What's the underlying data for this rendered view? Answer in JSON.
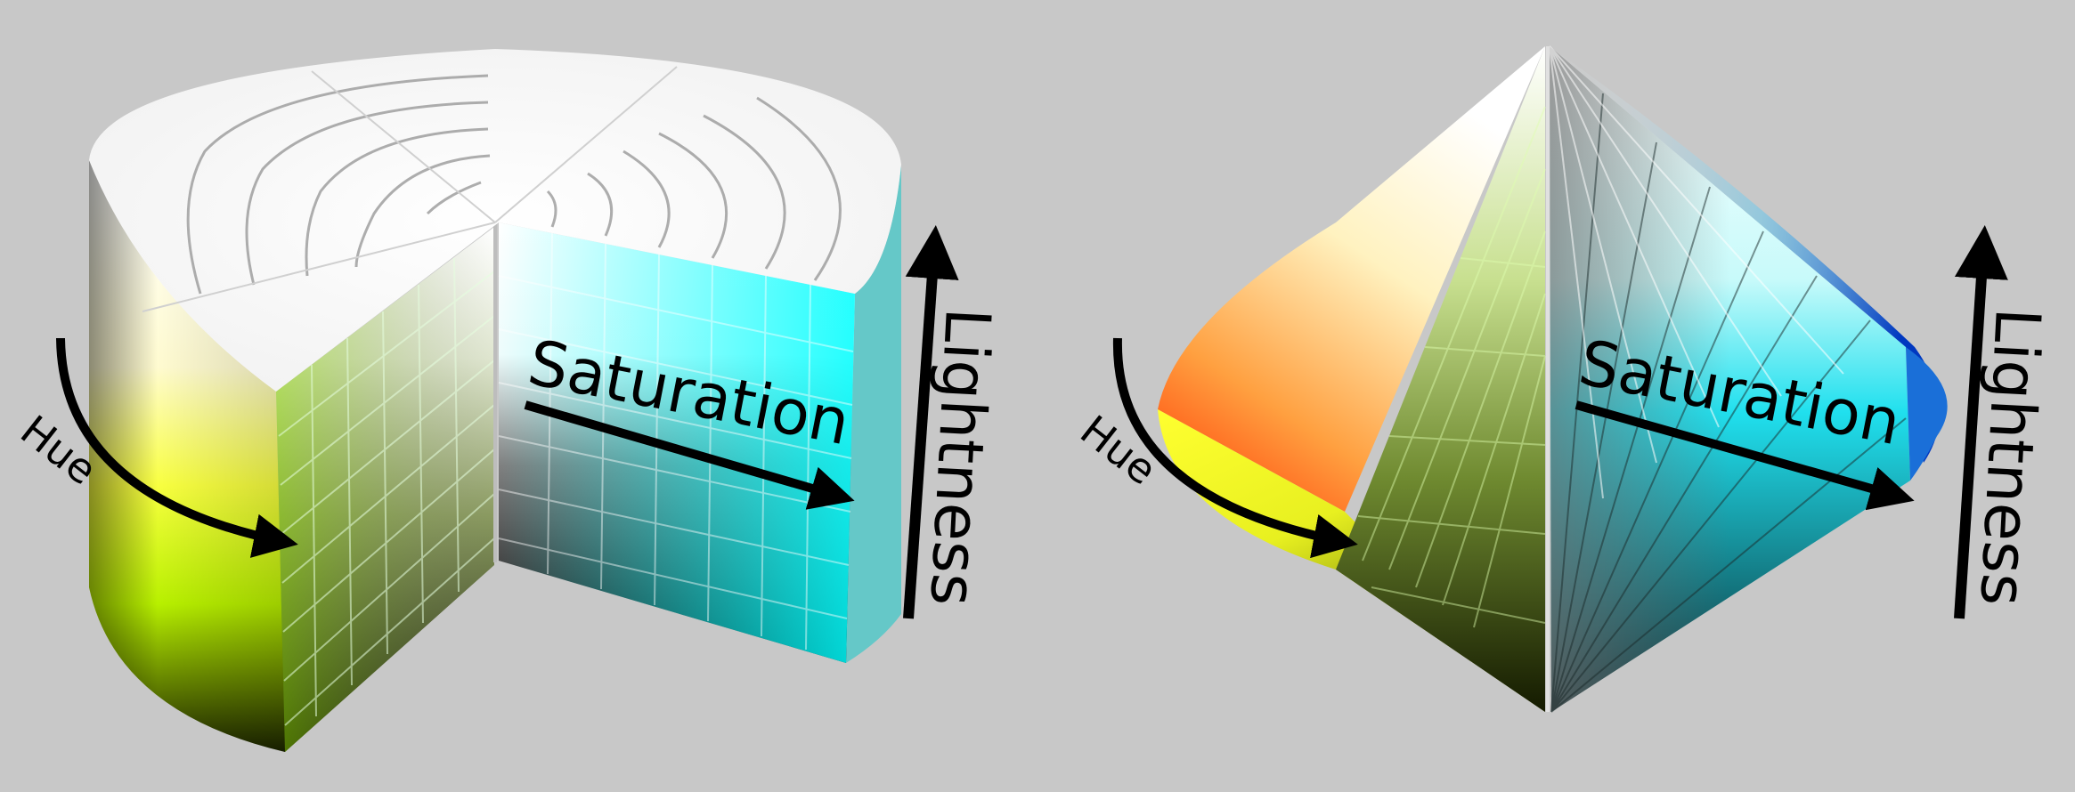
{
  "figures": [
    {
      "id": "hsl-cylinder",
      "labels": {
        "hue": "Hue",
        "saturation": "Saturation",
        "lightness": "Lightness"
      }
    },
    {
      "id": "hsl-bicone",
      "labels": {
        "hue": "Hue",
        "saturation": "Saturation",
        "lightness": "Lightness"
      }
    }
  ],
  "colors": {
    "background": "#c8c8c8",
    "white": "#ffffff",
    "black": "#000000",
    "red": "#ff2a00",
    "yellow": "#ffff00",
    "green": "#7fff00",
    "cyan": "#00ffff",
    "blue": "#0033cc"
  }
}
